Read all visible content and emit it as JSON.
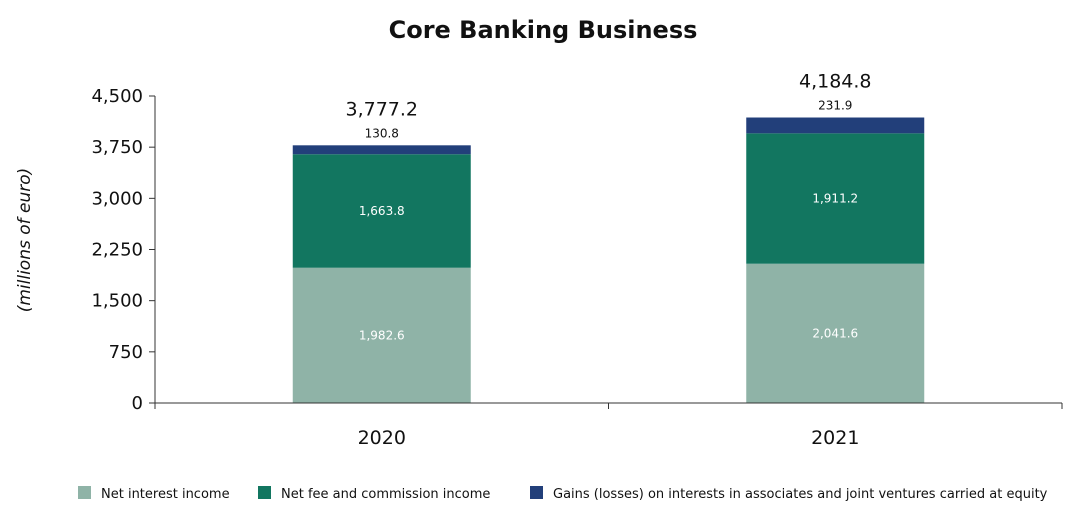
{
  "chart_data": {
    "type": "bar",
    "stacked": true,
    "title": "Core Banking Business",
    "ylabel": "(millions of euro)",
    "xlabel": "",
    "ylim": [
      0,
      4500
    ],
    "yticks": [
      0,
      750,
      1500,
      2250,
      3000,
      3750,
      4500
    ],
    "ytick_labels": [
      "0",
      "750",
      "1,500",
      "2,250",
      "3,000",
      "3,750",
      "4,500"
    ],
    "categories": [
      "2020",
      "2021"
    ],
    "series": [
      {
        "name": "Net interest income",
        "color": "#8fb3a7",
        "values": [
          1982.6,
          2041.6
        ],
        "labels": [
          "1,982.6",
          "2,041.6"
        ]
      },
      {
        "name": "Net fee and commission income",
        "color": "#127660",
        "values": [
          1663.8,
          1911.2
        ],
        "labels": [
          "1,663.8",
          "1,911.2"
        ]
      },
      {
        "name": "Gains (losses) on interests in associates and joint ventures carried at equity",
        "color": "#223f7a",
        "values": [
          130.8,
          231.9
        ],
        "labels": [
          "130.8",
          "231.9"
        ]
      }
    ],
    "totals": [
      3777.2,
      4184.8
    ],
    "total_labels": [
      "3,777.2",
      "4,184.8"
    ],
    "grid": false,
    "legend_position": "bottom"
  }
}
